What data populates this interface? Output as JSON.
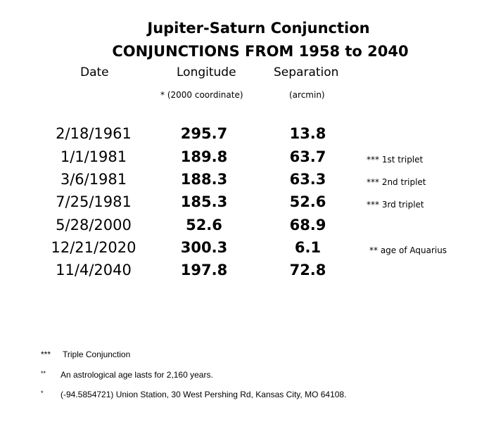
{
  "title": "Jupiter-Saturn Conjunction",
  "subtitle": "CONJUNCTIONS FROM 1958 to 2040",
  "headers": {
    "date": "Date",
    "longitude": "Longitude",
    "separation": "Separation",
    "longitude_note": "* (2000 coordinate)",
    "separation_unit": "(arcmin)"
  },
  "rows": [
    {
      "date": "2/18/1961",
      "longitude": "295.7",
      "separation": "13.8",
      "note": ""
    },
    {
      "date": "1/1/1981",
      "longitude": "189.8",
      "separation": "63.7",
      "note": "*** 1st triplet"
    },
    {
      "date": "3/6/1981",
      "longitude": "188.3",
      "separation": "63.3",
      "note": "*** 2nd triplet"
    },
    {
      "date": "7/25/1981",
      "longitude": "185.3",
      "separation": "52.6",
      "note": "*** 3rd triplet"
    },
    {
      "date": "5/28/2000",
      "longitude": "52.6",
      "separation": "68.9",
      "note": ""
    },
    {
      "date": "12/21/2020",
      "longitude": "300.3",
      "separation": "6.1",
      "note": "** age of Aquarius"
    },
    {
      "date": "11/4/2040",
      "longitude": "197.8",
      "separation": "72.8",
      "note": ""
    }
  ],
  "footnotes": [
    {
      "mark": "***",
      "text": "Triple Conjunction"
    },
    {
      "mark": "**",
      "text": "An astrological age lasts for 2,160 years."
    },
    {
      "mark": "*",
      "text": "(-94.5854721) Union Station, 30 West Pershing Rd, Kansas City, MO 64108."
    }
  ]
}
